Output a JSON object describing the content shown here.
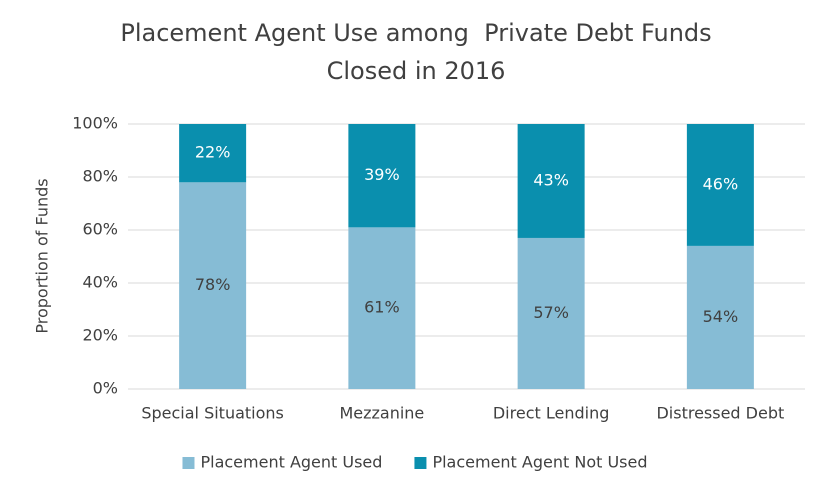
{
  "chart_data": {
    "type": "stacked_bar",
    "title": [
      "Placement Agent Use among  Private Debt Funds",
      "Closed in 2016"
    ],
    "y_label": "Proportion of Funds",
    "categories": [
      "Special Situations",
      "Mezzanine",
      "Direct Lending",
      "Distressed Debt"
    ],
    "series": [
      {
        "name": "Placement Agent Used",
        "color": "#86bcd5",
        "values": [
          78,
          61,
          57,
          54
        ],
        "value_labels": [
          "78%",
          "61%",
          "57%",
          "54%"
        ]
      },
      {
        "name": "Placement Agent Not Used",
        "color": "#0a8fae",
        "values": [
          22,
          39,
          43,
          46
        ],
        "value_labels": [
          "22%",
          "39%",
          "43%",
          "46%"
        ]
      }
    ],
    "ylim": [
      0,
      100
    ],
    "yticks": [
      {
        "value": 0,
        "label": "0%"
      },
      {
        "value": 20,
        "label": "20%"
      },
      {
        "value": 40,
        "label": "40%"
      },
      {
        "value": 60,
        "label": "60%"
      },
      {
        "value": 80,
        "label": "80%"
      },
      {
        "value": 100,
        "label": "100%"
      }
    ],
    "grid": true,
    "legend": "bottom"
  }
}
